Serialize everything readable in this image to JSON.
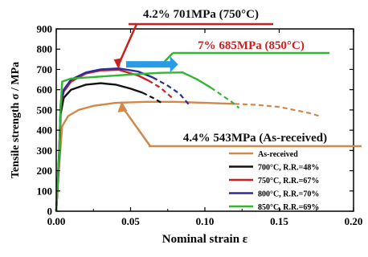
{
  "chart_data": {
    "type": "line",
    "xlabel": "Nominal strain ε",
    "ylabel": "Tensile strength σ / MPa",
    "xlim": [
      0.0,
      0.2
    ],
    "ylim": [
      0,
      900
    ],
    "x_ticks": [
      "0.00",
      "0.05",
      "0.10",
      "0.15",
      "0.20"
    ],
    "y_ticks": [
      "0",
      "100",
      "200",
      "300",
      "400",
      "500",
      "600",
      "700",
      "800",
      "900"
    ],
    "legend_position": "bottom-right",
    "series": [
      {
        "name": "As-received",
        "color": "#d2884a",
        "solid": [
          [
            0.0,
            0
          ],
          [
            0.002,
            230
          ],
          [
            0.004,
            420
          ],
          [
            0.008,
            470
          ],
          [
            0.015,
            500
          ],
          [
            0.025,
            520
          ],
          [
            0.04,
            535
          ],
          [
            0.06,
            540
          ],
          [
            0.08,
            540
          ],
          [
            0.1,
            535
          ],
          [
            0.12,
            530
          ]
        ],
        "dashed": [
          [
            0.12,
            530
          ],
          [
            0.135,
            525
          ],
          [
            0.15,
            515
          ],
          [
            0.16,
            500
          ],
          [
            0.17,
            485
          ],
          [
            0.177,
            470
          ]
        ]
      },
      {
        "name": "700°C, R.R.=48%",
        "color": "#111111",
        "solid": [
          [
            0.0,
            0
          ],
          [
            0.002,
            260
          ],
          [
            0.003,
            480
          ],
          [
            0.005,
            560
          ],
          [
            0.01,
            600
          ],
          [
            0.02,
            625
          ],
          [
            0.03,
            632
          ],
          [
            0.04,
            625
          ],
          [
            0.05,
            605
          ],
          [
            0.058,
            585
          ]
        ],
        "dashed": [
          [
            0.058,
            585
          ],
          [
            0.065,
            560
          ],
          [
            0.072,
            530
          ]
        ]
      },
      {
        "name": "750°C, R.R.=67%",
        "color": "#cc1f1f",
        "solid": [
          [
            0.0,
            0
          ],
          [
            0.002,
            300
          ],
          [
            0.003,
            520
          ],
          [
            0.005,
            590
          ],
          [
            0.01,
            640
          ],
          [
            0.02,
            680
          ],
          [
            0.03,
            695
          ],
          [
            0.042,
            698
          ],
          [
            0.055,
            670
          ],
          [
            0.062,
            645
          ]
        ],
        "dashed": [
          [
            0.062,
            645
          ],
          [
            0.07,
            610
          ],
          [
            0.078,
            560
          ]
        ]
      },
      {
        "name": "800°C, R.R.=70%",
        "color": "#2b2ba0",
        "solid": [
          [
            0.0,
            0
          ],
          [
            0.002,
            300
          ],
          [
            0.003,
            530
          ],
          [
            0.005,
            600
          ],
          [
            0.01,
            650
          ],
          [
            0.02,
            685
          ],
          [
            0.03,
            700
          ],
          [
            0.042,
            705
          ],
          [
            0.055,
            690
          ],
          [
            0.065,
            660
          ]
        ],
        "dashed": [
          [
            0.065,
            660
          ],
          [
            0.075,
            620
          ],
          [
            0.083,
            580
          ],
          [
            0.09,
            520
          ]
        ]
      },
      {
        "name": "850°C, R.R.=69%",
        "color": "#2fb82f",
        "solid": [
          [
            0.0,
            0
          ],
          [
            0.002,
            280
          ],
          [
            0.003,
            520
          ],
          [
            0.004,
            640
          ],
          [
            0.006,
            645
          ],
          [
            0.01,
            655
          ],
          [
            0.03,
            665
          ],
          [
            0.05,
            675
          ],
          [
            0.07,
            683
          ],
          [
            0.085,
            685
          ],
          [
            0.095,
            650
          ],
          [
            0.104,
            610
          ]
        ],
        "dashed": [
          [
            0.104,
            610
          ],
          [
            0.112,
            570
          ],
          [
            0.118,
            540
          ],
          [
            0.123,
            510
          ]
        ]
      }
    ],
    "annotations": [
      {
        "text": "4.2% 701MPa (750°C)",
        "color": "#cc1f1f",
        "point": [
          0.042,
          701
        ]
      },
      {
        "text": "7% 685MPa (850°C)",
        "color": "#cc1f1f",
        "point": [
          0.07,
          685
        ]
      },
      {
        "text": "4.4% 543MPa (As-received)",
        "color": "#d2884a",
        "point": [
          0.044,
          543
        ]
      }
    ]
  }
}
